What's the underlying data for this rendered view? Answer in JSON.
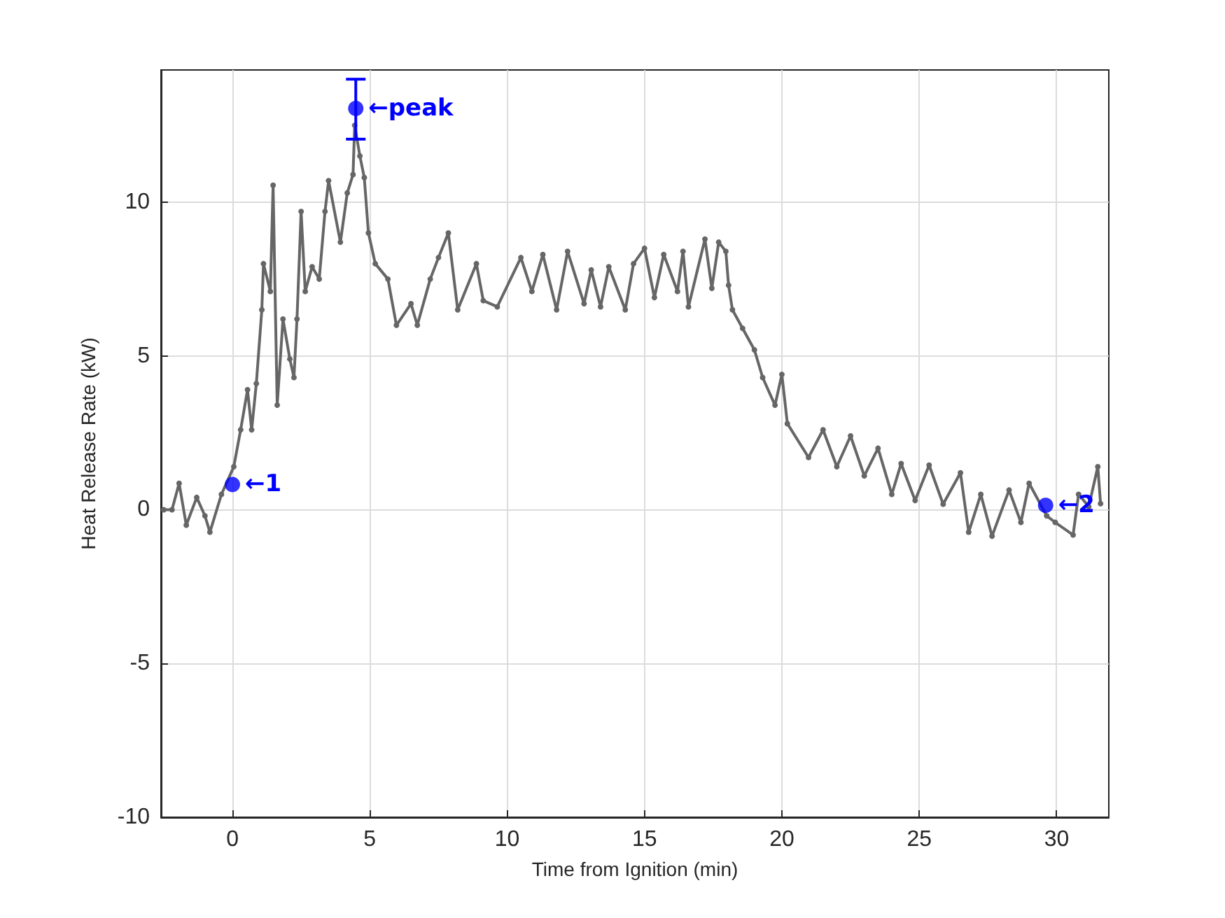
{
  "chart_data": {
    "type": "line",
    "xlabel": "Time from Ignition (min)",
    "ylabel": "Heat Release Rate (kW)",
    "xlim": [
      -2.6,
      31.9
    ],
    "ylim": [
      -10,
      14.3
    ],
    "xticks": [
      0,
      5,
      10,
      15,
      20,
      25,
      30
    ],
    "yticks": [
      -10,
      -5,
      0,
      5,
      10
    ],
    "grid": true,
    "marker": "circle",
    "line_style": "solid",
    "series": [
      {
        "color": "#666666",
        "x": [
          -2.5,
          -2.2,
          -1.94,
          -1.68,
          -1.3,
          -1.0,
          -0.82,
          -0.4,
          0.05,
          0.3,
          0.55,
          0.7,
          0.87,
          1.07,
          1.13,
          1.38,
          1.48,
          1.63,
          1.84,
          2.09,
          2.24,
          2.35,
          2.5,
          2.65,
          2.9,
          3.16,
          3.37,
          3.5,
          3.93,
          4.18,
          4.39,
          4.45,
          4.64,
          4.8,
          4.95,
          5.2,
          5.66,
          5.97,
          6.5,
          6.73,
          7.2,
          7.5,
          7.86,
          8.2,
          8.88,
          9.13,
          9.64,
          10.5,
          10.9,
          11.3,
          11.8,
          12.2,
          12.8,
          13.06,
          13.4,
          13.7,
          14.3,
          14.6,
          15.0,
          15.36,
          15.7,
          16.2,
          16.4,
          16.6,
          17.2,
          17.45,
          17.7,
          17.96,
          18.06,
          18.2,
          18.57,
          19.0,
          19.3,
          19.75,
          20.0,
          20.2,
          20.97,
          21.5,
          22.0,
          22.5,
          23.0,
          23.5,
          24.0,
          24.34,
          24.85,
          25.36,
          25.87,
          26.5,
          26.8,
          27.24,
          27.65,
          28.27,
          28.7,
          29.0,
          29.64,
          29.95,
          30.6,
          30.8,
          31.17,
          31.5,
          31.6
        ],
        "values": [
          0,
          0,
          0.86,
          -0.5,
          0.4,
          -0.2,
          -0.73,
          0.5,
          1.4,
          2.6,
          3.9,
          2.6,
          4.1,
          6.5,
          8.0,
          7.1,
          10.55,
          3.4,
          6.2,
          4.9,
          4.3,
          6.2,
          9.7,
          7.1,
          7.9,
          7.5,
          9.7,
          10.7,
          8.7,
          10.3,
          10.9,
          12.5,
          11.5,
          10.8,
          9.0,
          8.0,
          7.5,
          6.0,
          6.7,
          6.0,
          7.5,
          8.2,
          9.0,
          6.5,
          8.0,
          6.8,
          6.6,
          8.2,
          7.1,
          8.3,
          6.5,
          8.4,
          6.7,
          7.8,
          6.6,
          7.9,
          6.5,
          8.0,
          8.5,
          6.9,
          8.3,
          7.1,
          8.4,
          6.6,
          8.8,
          7.2,
          8.7,
          8.4,
          7.3,
          6.5,
          5.9,
          5.2,
          4.3,
          3.4,
          4.4,
          2.8,
          1.7,
          2.6,
          1.4,
          2.4,
          1.1,
          2.0,
          0.5,
          1.5,
          0.3,
          1.45,
          0.18,
          1.2,
          -0.73,
          0.5,
          -0.86,
          0.64,
          -0.41,
          0.86,
          -0.2,
          -0.41,
          -0.82,
          0.5,
          0.1,
          1.4,
          0.2
        ]
      },
      {
        "color": "#0000ff",
        "type": "scatter",
        "x": [
          0,
          4.49,
          29.6
        ],
        "values": [
          0.82,
          13.05,
          0.14
        ],
        "errors": [
          null,
          [
            12.05,
            14.0
          ],
          null
        ]
      }
    ],
    "annotations": [
      {
        "text": "←1",
        "x": 0,
        "y": 0.82
      },
      {
        "text": "←peak",
        "x": 4.49,
        "y": 13.05
      },
      {
        "text": "←2",
        "x": 29.6,
        "y": 0.14
      }
    ]
  }
}
